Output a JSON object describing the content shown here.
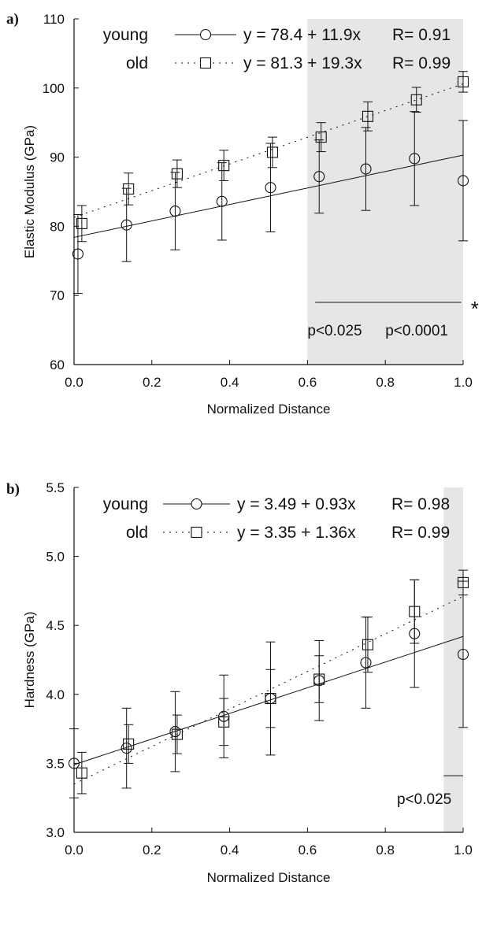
{
  "chart_data": [
    {
      "panel_label": "a)",
      "type": "scatter",
      "xlabel": "Normalized Distance",
      "ylabel": "Elastic Modulus (GPa)",
      "xlim": [
        0,
        1
      ],
      "ylim": [
        60,
        110
      ],
      "xticks": [
        "0.0",
        "0.2",
        "0.4",
        "0.6",
        "0.8",
        "1.0"
      ],
      "yticks": [
        "60",
        "70",
        "80",
        "90",
        "100",
        "110"
      ],
      "shaded_region": [
        0.6,
        1.0
      ],
      "legend": [
        {
          "name": "young",
          "equation": "y = 78.4 + 11.9x",
          "r": "R= 0.91"
        },
        {
          "name": "old",
          "equation": "y = 81.3 + 19.3x",
          "r": "R= 0.99"
        }
      ],
      "series": [
        {
          "name": "young",
          "marker": "circle",
          "line": "solid",
          "fit": {
            "intercept": 78.4,
            "slope": 11.9
          },
          "points": [
            {
              "x": 0.01,
              "y": 76,
              "yerr": 5.7
            },
            {
              "x": 0.135,
              "y": 80.2,
              "yerr": 5.3
            },
            {
              "x": 0.26,
              "y": 82.2,
              "yerr": 5.6
            },
            {
              "x": 0.38,
              "y": 83.6,
              "yerr": 5.6
            },
            {
              "x": 0.505,
              "y": 85.6,
              "yerr": 6.4
            },
            {
              "x": 0.63,
              "y": 87.2,
              "yerr": 5.3
            },
            {
              "x": 0.75,
              "y": 88.3,
              "yerr": 6.0
            },
            {
              "x": 0.875,
              "y": 89.8,
              "yerr": 6.8
            },
            {
              "x": 1.0,
              "y": 86.6,
              "yerr": 8.7
            }
          ]
        },
        {
          "name": "old",
          "marker": "square",
          "line": "dotted",
          "fit": {
            "intercept": 81.3,
            "slope": 19.3
          },
          "points": [
            {
              "x": 0.02,
              "y": 80.4,
              "yerr": 2.6
            },
            {
              "x": 0.14,
              "y": 85.4,
              "yerr": 2.3
            },
            {
              "x": 0.265,
              "y": 87.6,
              "yerr": 2.0
            },
            {
              "x": 0.385,
              "y": 88.8,
              "yerr": 2.2
            },
            {
              "x": 0.51,
              "y": 90.7,
              "yerr": 2.2
            },
            {
              "x": 0.635,
              "y": 92.9,
              "yerr": 2.1
            },
            {
              "x": 0.755,
              "y": 95.9,
              "yerr": 2.1
            },
            {
              "x": 0.88,
              "y": 98.3,
              "yerr": 1.8
            },
            {
              "x": 1.0,
              "y": 100.9,
              "yerr": 1.5
            }
          ]
        }
      ],
      "annotations": [
        {
          "type": "significance_line",
          "x": [
            0.62,
            0.995
          ],
          "y": 69
        },
        {
          "text": "*",
          "x": 1.03,
          "y": 68.4
        },
        {
          "text": "p<0.025",
          "x": 0.6,
          "y": 64.9
        },
        {
          "text": "p<0.0001",
          "x": 0.8,
          "y": 64.9
        }
      ]
    },
    {
      "panel_label": "b)",
      "type": "scatter",
      "xlabel": "Normalized Distance",
      "ylabel": "Hardness (GPa)",
      "xlim": [
        0,
        1
      ],
      "ylim": [
        3.0,
        5.5
      ],
      "xticks": [
        "0.0",
        "0.2",
        "0.4",
        "0.6",
        "0.8",
        "1.0"
      ],
      "yticks": [
        "3.0",
        "3.5",
        "4.0",
        "4.5",
        "5.0",
        "5.5"
      ],
      "shaded_region": [
        0.95,
        1.0
      ],
      "legend": [
        {
          "name": "young",
          "equation": "y = 3.49 + 0.93x",
          "r": "R= 0.98"
        },
        {
          "name": "old",
          "equation": "y = 3.35 + 1.36x",
          "r": "R= 0.99"
        }
      ],
      "series": [
        {
          "name": "young",
          "marker": "circle",
          "line": "solid",
          "fit": {
            "intercept": 3.49,
            "slope": 0.93
          },
          "points": [
            {
              "x": 0.0,
              "y": 3.5,
              "yerr": 0.25
            },
            {
              "x": 0.135,
              "y": 3.61,
              "yerr": 0.29
            },
            {
              "x": 0.26,
              "y": 3.73,
              "yerr": 0.29
            },
            {
              "x": 0.385,
              "y": 3.84,
              "yerr": 0.3
            },
            {
              "x": 0.505,
              "y": 3.97,
              "yerr": 0.41
            },
            {
              "x": 0.63,
              "y": 4.1,
              "yerr": 0.29
            },
            {
              "x": 0.75,
              "y": 4.23,
              "yerr": 0.33
            },
            {
              "x": 0.875,
              "y": 4.44,
              "yerr": 0.39
            },
            {
              "x": 1.0,
              "y": 4.29,
              "yerr": 0.53
            }
          ]
        },
        {
          "name": "old",
          "marker": "square",
          "line": "dotted",
          "fit": {
            "intercept": 3.35,
            "slope": 1.36
          },
          "points": [
            {
              "x": 0.02,
              "y": 3.43,
              "yerr": 0.15
            },
            {
              "x": 0.14,
              "y": 3.64,
              "yerr": 0.14
            },
            {
              "x": 0.265,
              "y": 3.71,
              "yerr": 0.14
            },
            {
              "x": 0.385,
              "y": 3.8,
              "yerr": 0.17
            },
            {
              "x": 0.505,
              "y": 3.97,
              "yerr": 0.21
            },
            {
              "x": 0.63,
              "y": 4.11,
              "yerr": 0.17
            },
            {
              "x": 0.755,
              "y": 4.36,
              "yerr": 0.2
            },
            {
              "x": 0.875,
              "y": 4.6,
              "yerr": 0.23
            },
            {
              "x": 1.0,
              "y": 4.81,
              "yerr": 0.09
            }
          ]
        }
      ],
      "annotations": [
        {
          "type": "significance_line",
          "x": [
            0.95,
            1.0
          ],
          "y": 3.41
        },
        {
          "text": "*",
          "x": 1.11,
          "y": 3.39
        },
        {
          "text": "p<0.025",
          "x": 0.83,
          "y": 3.24
        }
      ]
    }
  ]
}
